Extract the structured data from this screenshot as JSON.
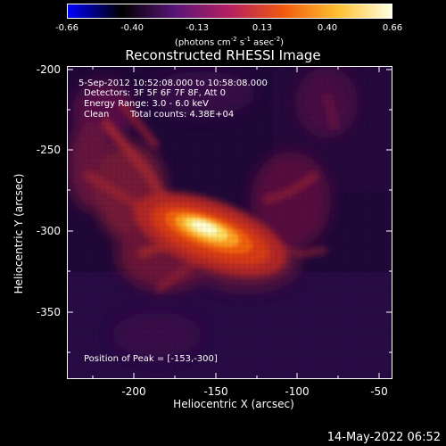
{
  "colorbar": {
    "ticks": [
      "-0.66",
      "-0.40",
      "-0.13",
      "0.13",
      "0.40",
      "0.66"
    ],
    "units_parts": [
      "(photons cm",
      "-2",
      " s",
      "-1",
      " asec",
      "-2",
      ")"
    ],
    "gradient": [
      "#0000ff",
      "#000000",
      "#5a1678",
      "#b52060",
      "#f05a10",
      "#ffc030",
      "#ffffe0"
    ]
  },
  "title": "Reconstructed RHESSI Image",
  "info": {
    "line1": "5-Sep-2012 10:52:08.000 to 10:58:08.000",
    "line2": "Detectors: 3F 5F 6F 7F 8F, Att 0",
    "line3": "Energy Range: 3.0 - 6.0 keV",
    "line4_method": "Clean",
    "line4_counts": "Total counts: 4.38E+04",
    "peak": "Position of Peak = [-153,-300]"
  },
  "axes": {
    "xlabel": "Heliocentric X (arcsec)",
    "ylabel": "Heliocentric Y (arcsec)",
    "xticks": [
      "-200",
      "-150",
      "-100",
      "-50"
    ],
    "yticks": [
      "-200",
      "-250",
      "-300",
      "-350"
    ]
  },
  "image": {
    "peak_x": -153,
    "peak_y": -300,
    "colormap": [
      "#1a0630",
      "#3d0a55",
      "#7a1460",
      "#c02830",
      "#f06010",
      "#ffb020",
      "#ffffc0"
    ]
  },
  "timestamp": "14-May-2022 06:52"
}
